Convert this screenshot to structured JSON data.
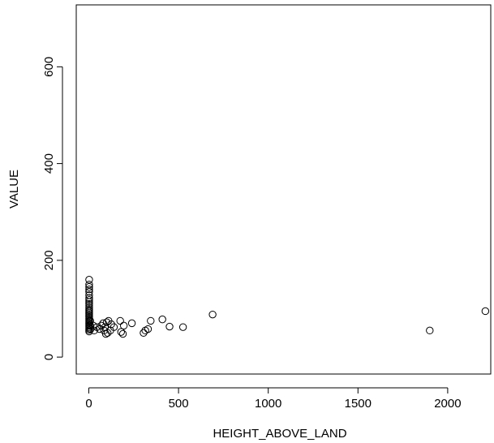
{
  "chart_data": {
    "type": "scatter",
    "title": "",
    "xlabel": "HEIGHT_ABOVE_LAND",
    "ylabel": "VALUE",
    "xlim": [
      -70,
      2240
    ],
    "ylim": [
      -35,
      728
    ],
    "xticks": [
      0,
      500,
      1000,
      1500,
      2000
    ],
    "yticks": [
      0,
      200,
      400,
      600
    ],
    "grid": false,
    "points": [
      {
        "x": 2,
        "y": 160
      },
      {
        "x": 2,
        "y": 150
      },
      {
        "x": 2,
        "y": 145
      },
      {
        "x": 2,
        "y": 140
      },
      {
        "x": 2,
        "y": 135
      },
      {
        "x": 2,
        "y": 128
      },
      {
        "x": 2,
        "y": 122
      },
      {
        "x": 2,
        "y": 118
      },
      {
        "x": 2,
        "y": 114
      },
      {
        "x": 2,
        "y": 110
      },
      {
        "x": 2,
        "y": 106
      },
      {
        "x": 2,
        "y": 102
      },
      {
        "x": 2,
        "y": 98
      },
      {
        "x": 2,
        "y": 95
      },
      {
        "x": 2,
        "y": 92
      },
      {
        "x": 2,
        "y": 89
      },
      {
        "x": 2,
        "y": 86
      },
      {
        "x": 2,
        "y": 83
      },
      {
        "x": 2,
        "y": 80
      },
      {
        "x": 2,
        "y": 77
      },
      {
        "x": 2,
        "y": 74
      },
      {
        "x": 2,
        "y": 71
      },
      {
        "x": 2,
        "y": 68
      },
      {
        "x": 2,
        "y": 65
      },
      {
        "x": 2,
        "y": 62
      },
      {
        "x": 2,
        "y": 59
      },
      {
        "x": 2,
        "y": 56
      },
      {
        "x": 2,
        "y": 53
      },
      {
        "x": 8,
        "y": 75
      },
      {
        "x": 8,
        "y": 65
      },
      {
        "x": 10,
        "y": 58
      },
      {
        "x": 25,
        "y": 65
      },
      {
        "x": 30,
        "y": 55
      },
      {
        "x": 45,
        "y": 62
      },
      {
        "x": 60,
        "y": 58
      },
      {
        "x": 70,
        "y": 65
      },
      {
        "x": 80,
        "y": 70
      },
      {
        "x": 85,
        "y": 55
      },
      {
        "x": 90,
        "y": 62
      },
      {
        "x": 95,
        "y": 48
      },
      {
        "x": 100,
        "y": 72
      },
      {
        "x": 105,
        "y": 50
      },
      {
        "x": 110,
        "y": 75
      },
      {
        "x": 120,
        "y": 55
      },
      {
        "x": 125,
        "y": 68
      },
      {
        "x": 140,
        "y": 62
      },
      {
        "x": 175,
        "y": 75
      },
      {
        "x": 180,
        "y": 52
      },
      {
        "x": 190,
        "y": 48
      },
      {
        "x": 195,
        "y": 65
      },
      {
        "x": 240,
        "y": 70
      },
      {
        "x": 305,
        "y": 50
      },
      {
        "x": 315,
        "y": 55
      },
      {
        "x": 330,
        "y": 58
      },
      {
        "x": 345,
        "y": 75
      },
      {
        "x": 410,
        "y": 78
      },
      {
        "x": 450,
        "y": 63
      },
      {
        "x": 525,
        "y": 62
      },
      {
        "x": 690,
        "y": 88
      },
      {
        "x": 1900,
        "y": 55
      },
      {
        "x": 2210,
        "y": 95
      }
    ]
  }
}
